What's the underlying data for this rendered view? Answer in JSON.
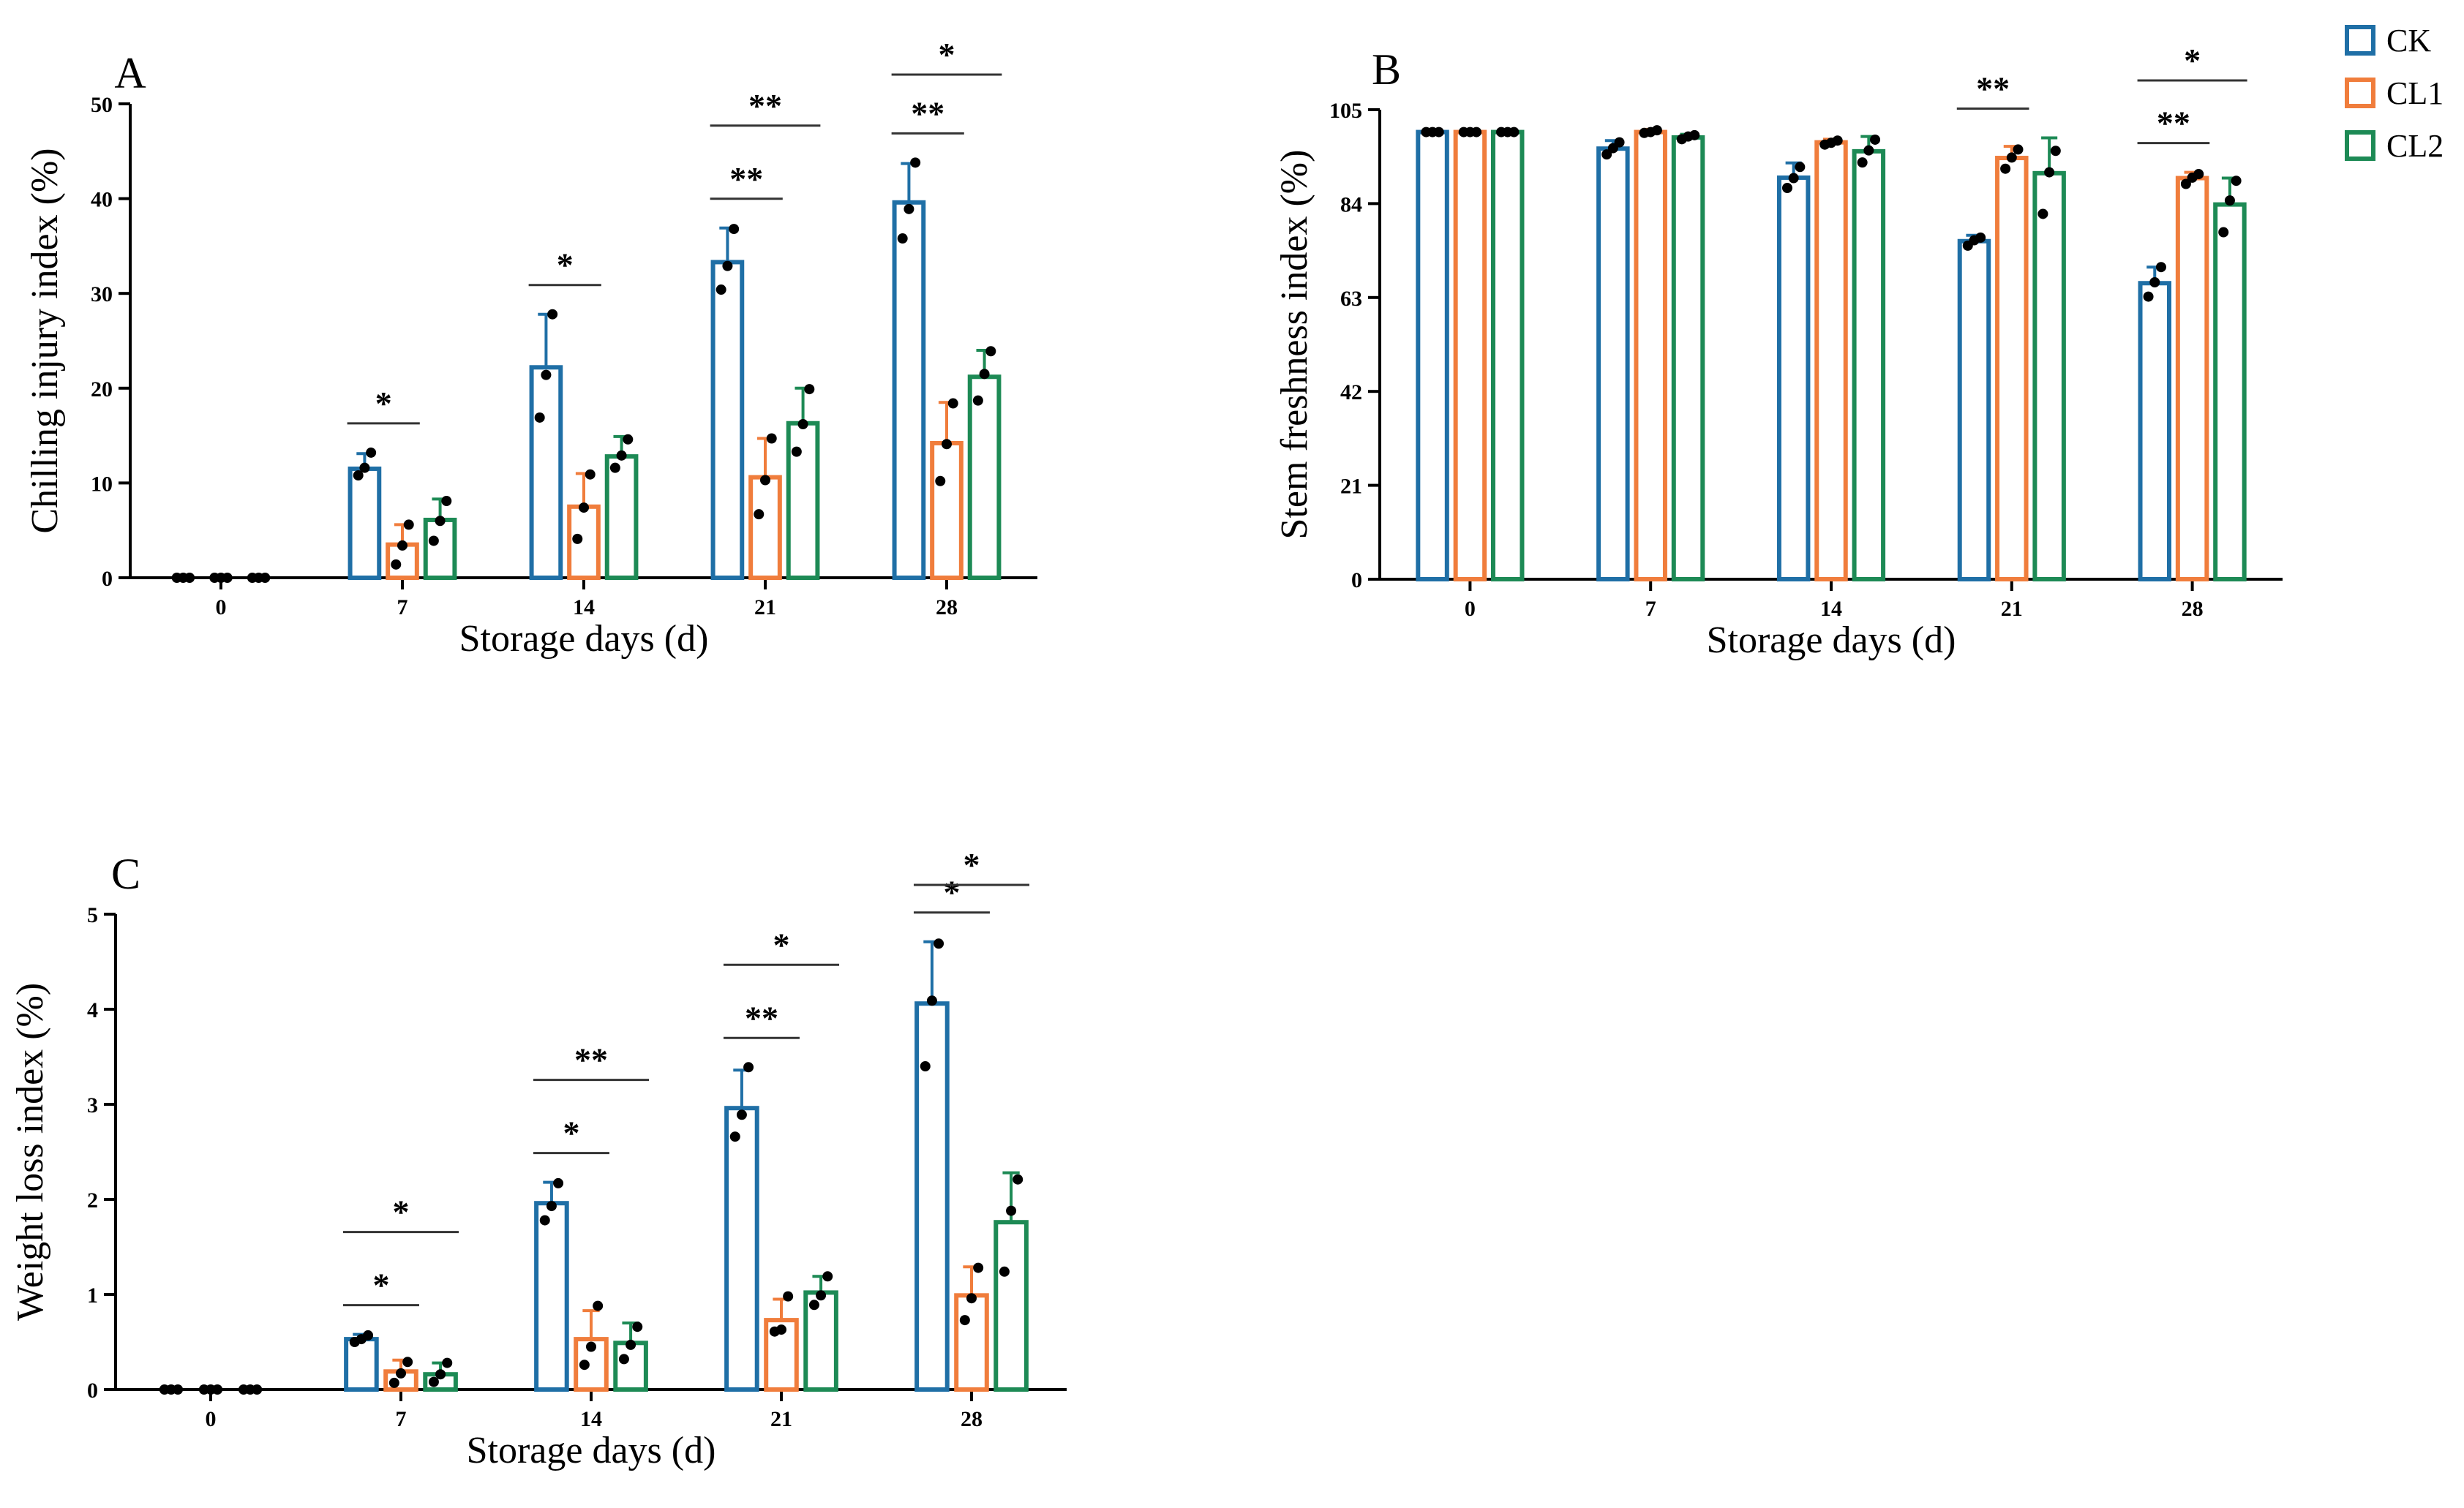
{
  "chart_data": [
    {
      "type": "bar",
      "panel": "A",
      "categories": [
        "0",
        "7",
        "14",
        "21",
        "28"
      ],
      "xlabel": "Storage days (d)",
      "ylabel": "Chilling injury index (%)",
      "ylim": [
        0,
        50
      ],
      "yticks": [
        "0",
        "10",
        "20",
        "30",
        "40",
        "50"
      ],
      "series": [
        {
          "name": "CK",
          "values": [
            0,
            11.5,
            22.2,
            33.3,
            39.6
          ],
          "errors": [
            0,
            1.6,
            5.6,
            3.6,
            4.1
          ],
          "points": [
            [
              0,
              0,
              0
            ],
            [
              10.8,
              11.6,
              13.2
            ],
            [
              16.9,
              21.4,
              27.8
            ],
            [
              30.4,
              32.9,
              36.8
            ],
            [
              35.8,
              38.9,
              43.8
            ]
          ]
        },
        {
          "name": "CL1",
          "values": [
            0,
            3.5,
            7.5,
            10.6,
            14.2
          ],
          "errors": [
            0,
            2.1,
            3.5,
            4.1,
            4.3
          ],
          "points": [
            [
              0,
              0,
              0
            ],
            [
              1.4,
              3.4,
              5.6
            ],
            [
              4.1,
              7.4,
              10.9
            ],
            [
              6.7,
              10.3,
              14.7
            ],
            [
              10.2,
              14.1,
              18.4
            ]
          ]
        },
        {
          "name": "CL2",
          "values": [
            0,
            6.1,
            12.8,
            16.3,
            21.2
          ],
          "errors": [
            0,
            2.2,
            2.1,
            3.7,
            2.8
          ],
          "points": [
            [
              0,
              0,
              0
            ],
            [
              3.9,
              6.0,
              8.1
            ],
            [
              11.6,
              12.9,
              14.6
            ],
            [
              13.3,
              16.2,
              19.9
            ],
            [
              18.7,
              21.5,
              23.9
            ]
          ]
        }
      ],
      "significance": [
        {
          "category": "7",
          "compare": [
            "CK",
            "CL1"
          ],
          "label": "*"
        },
        {
          "category": "14",
          "compare": [
            "CK",
            "CL1"
          ],
          "label": "*"
        },
        {
          "category": "21",
          "compare": [
            "CK",
            "CL1"
          ],
          "label": "**"
        },
        {
          "category": "21",
          "compare": [
            "CK",
            "CL2"
          ],
          "label": "**"
        },
        {
          "category": "28",
          "compare": [
            "CK",
            "CL1"
          ],
          "label": "**"
        },
        {
          "category": "28",
          "compare": [
            "CK",
            "CL2"
          ],
          "label": "*"
        }
      ]
    },
    {
      "type": "bar",
      "panel": "B",
      "categories": [
        "0",
        "7",
        "14",
        "21",
        "28"
      ],
      "xlabel": "Storage days (d)",
      "ylabel": "Stem freshness index (%)",
      "ylim": [
        0,
        105
      ],
      "yticks": [
        "0",
        "21",
        "42",
        "63",
        "84",
        "105"
      ],
      "series": [
        {
          "name": "CK",
          "values": [
            100,
            96.3,
            89.8,
            75.6,
            66.2
          ],
          "errors": [
            0,
            1.8,
            3.3,
            1.3,
            3.6
          ],
          "points": [
            [
              100,
              100,
              100
            ],
            [
              95.0,
              96.4,
              97.7
            ],
            [
              87.5,
              89.7,
              92.2
            ],
            [
              74.6,
              75.8,
              76.4
            ],
            [
              63.2,
              66.4,
              69.8
            ]
          ]
        },
        {
          "name": "CL1",
          "values": [
            100,
            100,
            97.7,
            94.2,
            89.7
          ],
          "errors": [
            0,
            0.6,
            0.7,
            2.6,
            1.3
          ],
          "points": [
            [
              100,
              100,
              100
            ],
            [
              99.8,
              100,
              100.4
            ],
            [
              97.2,
              97.6,
              98.1
            ],
            [
              91.8,
              94.3,
              96.1
            ],
            [
              88.4,
              89.8,
              90.6
            ]
          ]
        },
        {
          "name": "CL2",
          "values": [
            100,
            98.8,
            95.7,
            90.8,
            83.8
          ],
          "errors": [
            0,
            0.7,
            3.3,
            7.9,
            5.9
          ],
          "points": [
            [
              100,
              100,
              100
            ],
            [
              98.4,
              99.0,
              99.3
            ],
            [
              93.2,
              95.9,
              98.3
            ],
            [
              81.7,
              91.0,
              95.8
            ],
            [
              77.6,
              84.7,
              89.1
            ]
          ]
        }
      ],
      "significance": [
        {
          "category": "21",
          "compare": [
            "CK",
            "CL1"
          ],
          "label": "**"
        },
        {
          "category": "28",
          "compare": [
            "CK",
            "CL1"
          ],
          "label": "**"
        },
        {
          "category": "28",
          "compare": [
            "CK",
            "CL2"
          ],
          "label": "*"
        }
      ]
    },
    {
      "type": "bar",
      "panel": "C",
      "categories": [
        "0",
        "7",
        "14",
        "21",
        "28"
      ],
      "xlabel": "Storage days (d)",
      "ylabel": "Weight loss index (%)",
      "ylim": [
        0,
        5
      ],
      "yticks": [
        "0",
        "1",
        "2",
        "3",
        "4",
        "5"
      ],
      "series": [
        {
          "name": "CK",
          "values": [
            0,
            0.53,
            1.96,
            2.96,
            4.06
          ],
          "errors": [
            0,
            0.05,
            0.22,
            0.4,
            0.65
          ],
          "points": [
            [
              0,
              0,
              0
            ],
            [
              0.5,
              0.53,
              0.57
            ],
            [
              1.78,
              1.93,
              2.17
            ],
            [
              2.66,
              2.89,
              3.39
            ],
            [
              3.4,
              4.09,
              4.69
            ]
          ]
        },
        {
          "name": "CL1",
          "values": [
            0,
            0.19,
            0.53,
            0.73,
            0.99
          ],
          "errors": [
            0,
            0.12,
            0.3,
            0.22,
            0.3
          ],
          "points": [
            [
              0,
              0,
              0
            ],
            [
              0.07,
              0.17,
              0.29
            ],
            [
              0.26,
              0.45,
              0.88
            ],
            [
              0.61,
              0.63,
              0.98
            ],
            [
              0.73,
              0.96,
              1.28
            ]
          ]
        },
        {
          "name": "CL2",
          "values": [
            0,
            0.16,
            0.49,
            1.02,
            1.76
          ],
          "errors": [
            0,
            0.12,
            0.21,
            0.17,
            0.52
          ],
          "points": [
            [
              0,
              0,
              0
            ],
            [
              0.08,
              0.16,
              0.28
            ],
            [
              0.32,
              0.47,
              0.66
            ],
            [
              0.89,
              0.99,
              1.19
            ],
            [
              1.24,
              1.88,
              2.21
            ]
          ]
        }
      ],
      "significance": [
        {
          "category": "7",
          "compare": [
            "CK",
            "CL1"
          ],
          "label": "*"
        },
        {
          "category": "7",
          "compare": [
            "CK",
            "CL2"
          ],
          "label": "*"
        },
        {
          "category": "14",
          "compare": [
            "CK",
            "CL1"
          ],
          "label": "*"
        },
        {
          "category": "14",
          "compare": [
            "CK",
            "CL2"
          ],
          "label": "**"
        },
        {
          "category": "21",
          "compare": [
            "CK",
            "CL1"
          ],
          "label": "**"
        },
        {
          "category": "21",
          "compare": [
            "CK",
            "CL2"
          ],
          "label": "*"
        },
        {
          "category": "28",
          "compare": [
            "CK",
            "CL1"
          ],
          "label": "*"
        },
        {
          "category": "28",
          "compare": [
            "CK",
            "CL2"
          ],
          "label": "*"
        }
      ]
    }
  ],
  "legend": [
    {
      "label": "CK",
      "color": "#1f6fa6"
    },
    {
      "label": "CL1",
      "color": "#f07d3c"
    },
    {
      "label": "CL2",
      "color": "#1d8a55"
    }
  ]
}
